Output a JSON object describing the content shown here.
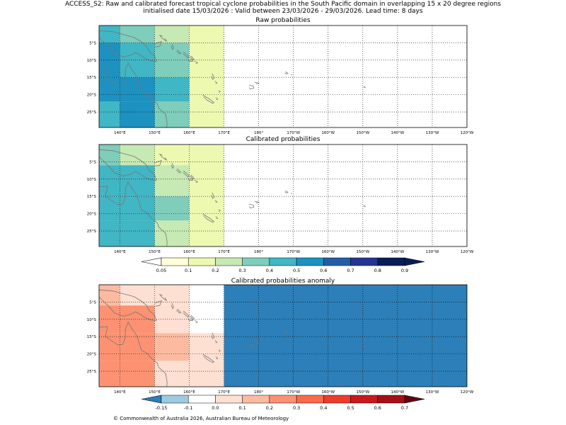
{
  "header": {
    "line1": "ACCESS_S2: Raw and calibrated forecast tropical cyclone probabilities in the South Pacific domain in overlapping 15 x 20 degree regions",
    "line2": "initialised date 15/03/2026 :  Valid between 23/03/2026 - 29/03/2026. Lead time: 8 days"
  },
  "footer": {
    "copyright": "© Commonwealth of Australia 2026, Australian Bureau of Meteorology"
  },
  "map": {
    "lon_range": [
      134,
      240
    ],
    "lat_range": [
      -29.5,
      0
    ],
    "lon_ticks": [
      140,
      150,
      160,
      170,
      180,
      190,
      200,
      210,
      220,
      230,
      240
    ],
    "lon_tick_labels": [
      "140°E",
      "150°E",
      "160°E",
      "170°E",
      "180°",
      "170°W",
      "160°W",
      "150°W",
      "140°W",
      "130°W",
      "120°W"
    ],
    "lat_ticks": [
      -5,
      -10,
      -15,
      -20,
      -25
    ],
    "lat_tick_labels": [
      "5°S",
      "10°S",
      "15°S",
      "20°S",
      "25°S"
    ],
    "grid": "dotted"
  },
  "colors": {
    "prob_scale": [
      "#ffffff",
      "#ffffd9",
      "#edf8b1",
      "#c7e9b4",
      "#7fcdbb",
      "#41b6c4",
      "#1d91c0",
      "#225ea8",
      "#253494",
      "#081d58"
    ],
    "anom_scale": [
      "#2c7fb8",
      "#9ecae1",
      "#ffffff",
      "#fee0d2",
      "#fcbba1",
      "#fc9272",
      "#fb6a4a",
      "#ef3b2c",
      "#cb181d",
      "#a50f15",
      "#67000d"
    ],
    "coast": "#777777"
  },
  "chart_data": [
    {
      "type": "heatmap",
      "title": "Raw probabilities",
      "cells": [
        {
          "lon": [
            134,
            140
          ],
          "lat": [
            -5,
            0
          ],
          "value": 0.45
        },
        {
          "lon": [
            140,
            150
          ],
          "lat": [
            -5,
            0
          ],
          "value": 0.35
        },
        {
          "lon": [
            150,
            160
          ],
          "lat": [
            -5,
            0
          ],
          "value": 0.25
        },
        {
          "lon": [
            160,
            170
          ],
          "lat": [
            -5,
            0
          ],
          "value": 0.1
        },
        {
          "lon": [
            134,
            140
          ],
          "lat": [
            -15,
            -5
          ],
          "value": 0.55
        },
        {
          "lon": [
            140,
            150
          ],
          "lat": [
            -15,
            -5
          ],
          "value": 0.45
        },
        {
          "lon": [
            150,
            160
          ],
          "lat": [
            -15,
            -5
          ],
          "value": 0.35
        },
        {
          "lon": [
            160,
            170
          ],
          "lat": [
            -15,
            -5
          ],
          "value": 0.15
        },
        {
          "lon": [
            134,
            140
          ],
          "lat": [
            -22,
            -15
          ],
          "value": 0.55
        },
        {
          "lon": [
            140,
            150
          ],
          "lat": [
            -22,
            -15
          ],
          "value": 0.55
        },
        {
          "lon": [
            150,
            160
          ],
          "lat": [
            -22,
            -15
          ],
          "value": 0.45
        },
        {
          "lon": [
            160,
            170
          ],
          "lat": [
            -22,
            -15
          ],
          "value": 0.15
        },
        {
          "lon": [
            134,
            140
          ],
          "lat": [
            -29.5,
            -22
          ],
          "value": 0.45
        },
        {
          "lon": [
            140,
            150
          ],
          "lat": [
            -29.5,
            -22
          ],
          "value": 0.55
        },
        {
          "lon": [
            150,
            160
          ],
          "lat": [
            -29.5,
            -22
          ],
          "value": 0.35
        },
        {
          "lon": [
            160,
            170
          ],
          "lat": [
            -29.5,
            -22
          ],
          "value": 0.15
        }
      ]
    },
    {
      "type": "heatmap",
      "title": "Calibrated probabilities",
      "cells": [
        {
          "lon": [
            134,
            140
          ],
          "lat": [
            -6,
            0
          ],
          "value": 0.35
        },
        {
          "lon": [
            140,
            150
          ],
          "lat": [
            -6,
            0
          ],
          "value": 0.25
        },
        {
          "lon": [
            150,
            160
          ],
          "lat": [
            -6,
            0
          ],
          "value": 0.15
        },
        {
          "lon": [
            160,
            170
          ],
          "lat": [
            -6,
            0
          ],
          "value": 0.1
        },
        {
          "lon": [
            134,
            140
          ],
          "lat": [
            -15,
            -6
          ],
          "value": 0.45
        },
        {
          "lon": [
            140,
            150
          ],
          "lat": [
            -15,
            -6
          ],
          "value": 0.45
        },
        {
          "lon": [
            150,
            160
          ],
          "lat": [
            -15,
            -6
          ],
          "value": 0.25
        },
        {
          "lon": [
            160,
            170
          ],
          "lat": [
            -15,
            -6
          ],
          "value": 0.1
        },
        {
          "lon": [
            134,
            140
          ],
          "lat": [
            -22,
            -15
          ],
          "value": 0.45
        },
        {
          "lon": [
            140,
            150
          ],
          "lat": [
            -22,
            -15
          ],
          "value": 0.45
        },
        {
          "lon": [
            150,
            160
          ],
          "lat": [
            -22,
            -15
          ],
          "value": 0.35
        },
        {
          "lon": [
            160,
            170
          ],
          "lat": [
            -22,
            -15
          ],
          "value": 0.15
        },
        {
          "lon": [
            134,
            140
          ],
          "lat": [
            -29.5,
            -22
          ],
          "value": 0.45
        },
        {
          "lon": [
            140,
            150
          ],
          "lat": [
            -29.5,
            -22
          ],
          "value": 0.45
        },
        {
          "lon": [
            150,
            160
          ],
          "lat": [
            -29.5,
            -22
          ],
          "value": 0.25
        },
        {
          "lon": [
            160,
            170
          ],
          "lat": [
            -29.5,
            -22
          ],
          "value": 0.15
        }
      ]
    },
    {
      "type": "heatmap",
      "title": "Calibrated probabilities anomaly",
      "cells": [
        {
          "lon": [
            134,
            140
          ],
          "lat": [
            -6,
            0
          ],
          "value": 0.15
        },
        {
          "lon": [
            140,
            150
          ],
          "lat": [
            -6,
            0
          ],
          "value": 0.05
        },
        {
          "lon": [
            150,
            160
          ],
          "lat": [
            -6,
            0
          ],
          "value": 0.0
        },
        {
          "lon": [
            160,
            170
          ],
          "lat": [
            -6,
            0
          ],
          "value": -0.1
        },
        {
          "lon": [
            170,
            240
          ],
          "lat": [
            -29.5,
            0
          ],
          "value": -0.2
        },
        {
          "lon": [
            134,
            140
          ],
          "lat": [
            -14,
            -6
          ],
          "value": 0.25
        },
        {
          "lon": [
            140,
            150
          ],
          "lat": [
            -14,
            -6
          ],
          "value": 0.25
        },
        {
          "lon": [
            150,
            155
          ],
          "lat": [
            -14,
            -6
          ],
          "value": 0.05
        },
        {
          "lon": [
            155,
            160
          ],
          "lat": [
            -14,
            -6
          ],
          "value": 0.05
        },
        {
          "lon": [
            160,
            170
          ],
          "lat": [
            -14,
            -6
          ],
          "value": -0.1
        },
        {
          "lon": [
            134,
            140
          ],
          "lat": [
            -22,
            -14
          ],
          "value": 0.25
        },
        {
          "lon": [
            140,
            150
          ],
          "lat": [
            -22,
            -14
          ],
          "value": 0.25
        },
        {
          "lon": [
            150,
            160
          ],
          "lat": [
            -22,
            -14
          ],
          "value": 0.15
        },
        {
          "lon": [
            160,
            170
          ],
          "lat": [
            -22,
            -14
          ],
          "value": 0.0
        },
        {
          "lon": [
            134,
            140
          ],
          "lat": [
            -29.5,
            -22
          ],
          "value": 0.25
        },
        {
          "lon": [
            140,
            150
          ],
          "lat": [
            -29.5,
            -22
          ],
          "value": 0.25
        },
        {
          "lon": [
            150,
            160
          ],
          "lat": [
            -29.5,
            -22
          ],
          "value": 0.05
        },
        {
          "lon": [
            160,
            170
          ],
          "lat": [
            -29.5,
            -22
          ],
          "value": 0.0
        }
      ]
    }
  ],
  "colorbars": [
    {
      "name": "probability",
      "bounds": [
        0.05,
        0.1,
        0.2,
        0.3,
        0.4,
        0.5,
        0.6,
        0.7,
        0.8,
        0.9
      ],
      "tick_labels": [
        "0.05",
        "0.1",
        "0.2",
        "0.3",
        "0.4",
        "0.5",
        "0.6",
        "0.7",
        "0.8",
        "0.9"
      ],
      "extend": "both"
    },
    {
      "name": "anomaly",
      "bounds": [
        -0.15,
        -0.1,
        0.0,
        0.1,
        0.2,
        0.3,
        0.4,
        0.5,
        0.6,
        0.7
      ],
      "tick_labels": [
        "-0.15",
        "-0.1",
        "0.0",
        "0.1",
        "0.2",
        "0.3",
        "0.4",
        "0.5",
        "0.6",
        "0.7"
      ],
      "extend": "both"
    }
  ]
}
